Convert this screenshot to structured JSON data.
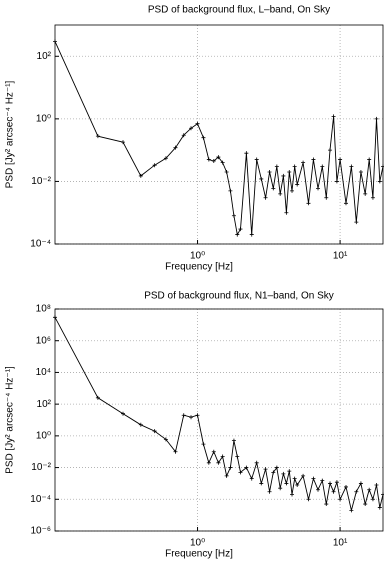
{
  "chart_data": [
    {
      "type": "line",
      "title": "PSD of background flux, L–band, On Sky",
      "xlabel": "Frequency [Hz]",
      "ylabel": "PSD [Jy² arcsec⁻⁴ Hz⁻¹]",
      "xscale": "log",
      "yscale": "log",
      "grid": true,
      "marker": "+",
      "color": "#000000",
      "xlim": [
        0.1,
        20
      ],
      "ylim": [
        0.0001,
        1000
      ],
      "xticks": [
        {
          "value": 1,
          "label": "10⁰"
        },
        {
          "value": 10,
          "label": "10¹"
        }
      ],
      "yticks": [
        {
          "value": 0.0001,
          "label": "10⁻⁴"
        },
        {
          "value": 0.01,
          "label": "10⁻²"
        },
        {
          "value": 1,
          "label": "10⁰"
        },
        {
          "value": 100,
          "label": "10²"
        }
      ],
      "x": [
        0.1,
        0.2,
        0.3,
        0.4,
        0.5,
        0.6,
        0.7,
        0.8,
        0.9,
        1.0,
        1.1,
        1.2,
        1.3,
        1.4,
        1.5,
        1.6,
        1.7,
        1.8,
        1.9,
        2.0,
        2.2,
        2.4,
        2.6,
        2.8,
        3.0,
        3.2,
        3.4,
        3.6,
        3.8,
        4.0,
        4.2,
        4.4,
        4.6,
        4.8,
        5.0,
        5.5,
        6.0,
        6.5,
        7.0,
        7.5,
        8.0,
        8.5,
        9.0,
        9.5,
        10,
        11,
        12,
        13,
        14,
        15,
        16,
        17,
        18,
        19,
        20
      ],
      "values": [
        300,
        0.28,
        0.18,
        0.015,
        0.033,
        0.055,
        0.12,
        0.3,
        0.5,
        0.7,
        0.25,
        0.05,
        0.045,
        0.06,
        0.04,
        0.02,
        0.005,
        0.0008,
        0.0002,
        0.0003,
        0.08,
        0.0002,
        0.05,
        0.012,
        0.003,
        0.02,
        0.006,
        0.03,
        0.004,
        0.015,
        0.001,
        0.02,
        0.005,
        0.03,
        0.008,
        0.04,
        0.002,
        0.05,
        0.006,
        0.03,
        0.003,
        0.1,
        1.2,
        0.01,
        0.05,
        0.002,
        0.03,
        0.0005,
        0.02,
        0.004,
        0.05,
        0.003,
        1.0,
        0.01,
        0.03
      ]
    },
    {
      "type": "line",
      "title": "PSD of background flux, N1–band, On Sky",
      "xlabel": "Frequency [Hz]",
      "ylabel": "PSD [Jy² arcsec⁻⁴ Hz⁻¹]",
      "xscale": "log",
      "yscale": "log",
      "grid": true,
      "marker": "+",
      "color": "#000000",
      "xlim": [
        0.1,
        20
      ],
      "ylim": [
        1e-06,
        100000000
      ],
      "xticks": [
        {
          "value": 1,
          "label": "10⁰"
        },
        {
          "value": 10,
          "label": "10¹"
        }
      ],
      "yticks": [
        {
          "value": 1e-06,
          "label": "10⁻⁶"
        },
        {
          "value": 0.0001,
          "label": "10⁻⁴"
        },
        {
          "value": 0.01,
          "label": "10⁻²"
        },
        {
          "value": 1,
          "label": "10⁰"
        },
        {
          "value": 100,
          "label": "10²"
        },
        {
          "value": 10000,
          "label": "10⁴"
        },
        {
          "value": 1000000,
          "label": "10⁶"
        },
        {
          "value": 100000000,
          "label": "10⁸"
        }
      ],
      "x": [
        0.1,
        0.2,
        0.3,
        0.4,
        0.5,
        0.6,
        0.7,
        0.8,
        0.9,
        1.0,
        1.1,
        1.2,
        1.3,
        1.4,
        1.5,
        1.6,
        1.7,
        1.8,
        1.9,
        2.0,
        2.2,
        2.4,
        2.6,
        2.8,
        3.0,
        3.2,
        3.4,
        3.6,
        3.8,
        4.0,
        4.2,
        4.4,
        4.6,
        4.8,
        5.0,
        5.5,
        6.0,
        6.5,
        7.0,
        7.5,
        8.0,
        8.5,
        9.0,
        9.5,
        10,
        11,
        12,
        13,
        14,
        15,
        16,
        17,
        18,
        19,
        20
      ],
      "values": [
        30000000,
        250,
        25,
        5,
        2,
        0.6,
        0.1,
        20,
        15,
        20,
        0.3,
        0.02,
        0.1,
        0.02,
        0.05,
        0.003,
        0.01,
        0.5,
        0.05,
        0.005,
        0.01,
        0.002,
        0.02,
        0.001,
        0.008,
        0.0003,
        0.005,
        0.01,
        0.0005,
        0.004,
        0.001,
        0.006,
        0.0002,
        0.002,
        0.0008,
        0.003,
        0.0001,
        0.002,
        0.0004,
        0.0015,
        5e-05,
        0.001,
        0.0003,
        0.0012,
        0.0001,
        0.0006,
        2e-05,
        0.0003,
        0.001,
        5e-05,
        0.0004,
        0.0001,
        0.0008,
        3e-05,
        0.0002
      ]
    }
  ]
}
